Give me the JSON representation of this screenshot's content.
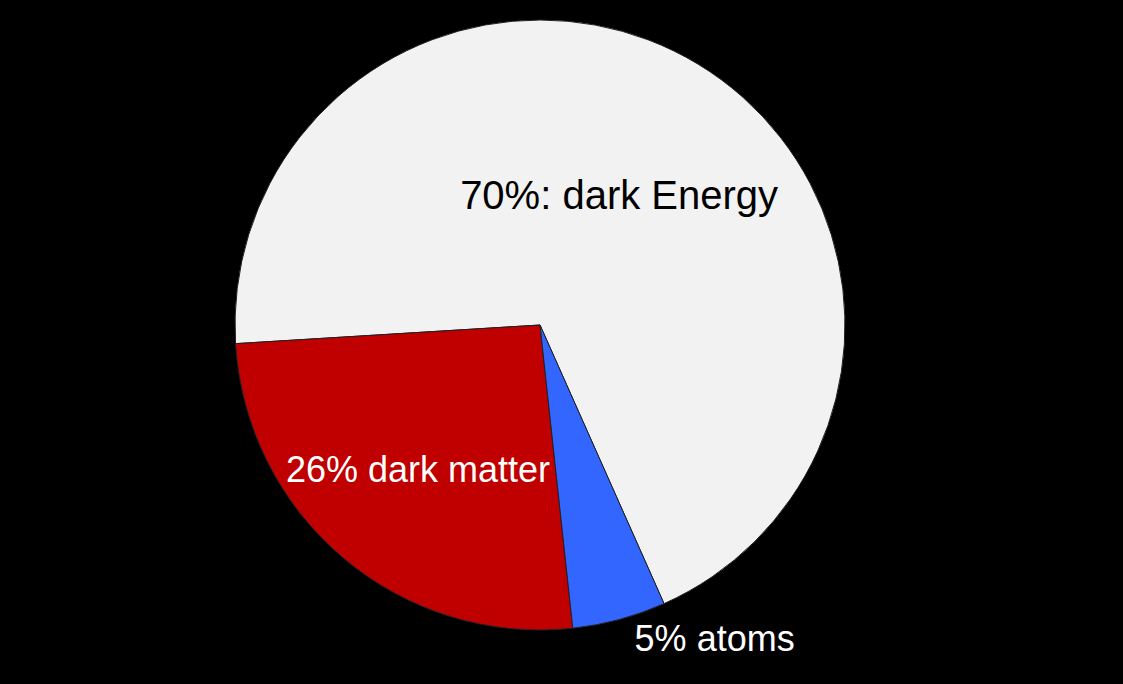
{
  "chart_data": {
    "type": "pie",
    "values": [
      70,
      26,
      5
    ],
    "value_labels": [
      "70%: dark Energy",
      "26% dark matter",
      "5% atoms"
    ],
    "colors": [
      "#f2f2f2",
      "#c00000",
      "#3366ff"
    ],
    "data_labels": true
  }
}
